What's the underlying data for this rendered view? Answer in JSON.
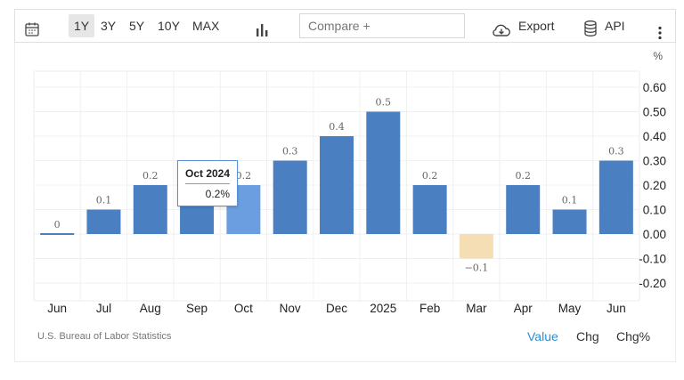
{
  "toolbar": {
    "ranges": [
      "1Y",
      "3Y",
      "5Y",
      "10Y",
      "MAX"
    ],
    "compare_placeholder": "Compare +",
    "export_label": "Export",
    "api_label": "API"
  },
  "footer": {
    "source": "U.S. Bureau of Labor Statistics",
    "modes": [
      "Value",
      "Chg",
      "Chg%"
    ]
  },
  "tooltip": {
    "title": "Oct 2024",
    "value": "0.2%"
  },
  "colors": {
    "bar": "#4a7fc1",
    "bar_highlight": "#6b9ee0",
    "bar_negative": "#f5deb3",
    "accent": "#2a8fd6"
  },
  "chart_data": {
    "type": "bar",
    "categories": [
      "Jun",
      "Jul",
      "Aug",
      "Sep",
      "Oct",
      "Nov",
      "Dec",
      "2025",
      "Feb",
      "Mar",
      "Apr",
      "May",
      "Jun"
    ],
    "values": [
      0,
      0.1,
      0.2,
      0.2,
      0.2,
      0.3,
      0.4,
      0.5,
      0.2,
      -0.1,
      0.2,
      0.1,
      0.3
    ],
    "data_labels": [
      "0",
      "0.1",
      "0.2",
      "",
      "0.2",
      "0.3",
      "0.4",
      "0.5",
      "0.2",
      "−0.1",
      "0.2",
      "0.1",
      "0.3"
    ],
    "unit": "%",
    "yticks": [
      "0.60",
      "0.50",
      "0.40",
      "0.30",
      "0.20",
      "0.10",
      "0.00",
      "-0.10",
      "-0.20"
    ],
    "ylim": [
      -0.27,
      0.65
    ],
    "grid": true
  }
}
